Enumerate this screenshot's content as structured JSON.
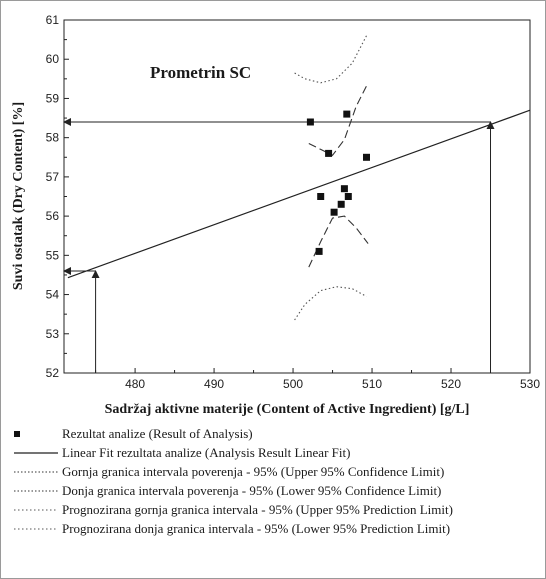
{
  "chart_data": {
    "type": "scatter",
    "title": "Prometrin SC",
    "xlabel": "Sadržaj aktivne materije (Content of Active Ingredient) [g/L]",
    "ylabel": "Suvi ostatak (Dry Content) [%]",
    "xlim": [
      471,
      530
    ],
    "ylim": [
      52,
      61
    ],
    "x_ticks": [
      "480",
      "490",
      "500",
      "510",
      "520",
      "530"
    ],
    "y_ticks": [
      "52",
      "53",
      "54",
      "55",
      "56",
      "57",
      "58",
      "59",
      "60",
      "61"
    ],
    "grid": false,
    "legend_position": "below plot",
    "series": [
      {
        "name": "Rezultat analize (Result of Analysis)",
        "kind": "points",
        "points": [
          {
            "x": 502.2,
            "y": 58.4
          },
          {
            "x": 503.3,
            "y": 55.1
          },
          {
            "x": 503.5,
            "y": 56.5
          },
          {
            "x": 504.5,
            "y": 57.6
          },
          {
            "x": 505.2,
            "y": 56.1
          },
          {
            "x": 506.1,
            "y": 56.3
          },
          {
            "x": 506.5,
            "y": 56.7
          },
          {
            "x": 506.8,
            "y": 58.6
          },
          {
            "x": 507.0,
            "y": 56.5
          },
          {
            "x": 509.3,
            "y": 57.5
          }
        ]
      },
      {
        "name": "Linear Fit rezultata analize (Analysis Result Linear Fit)",
        "kind": "line",
        "style": "solid",
        "points": [
          {
            "x": 471.5,
            "y": 54.43
          },
          {
            "x": 530,
            "y": 58.7
          }
        ]
      },
      {
        "name": "Gornja granica intervala poverenja - 95% (Upper 95% Confidence Limit)",
        "kind": "line",
        "style": "dashed",
        "points": [
          {
            "x": 502.0,
            "y": 57.85
          },
          {
            "x": 503.5,
            "y": 57.7
          },
          {
            "x": 505.0,
            "y": 57.55
          },
          {
            "x": 506.5,
            "y": 57.95
          },
          {
            "x": 508.0,
            "y": 58.8
          },
          {
            "x": 509.5,
            "y": 59.4
          }
        ]
      },
      {
        "name": "Donja granica intervala poverenja - 95% (Lower 95% Confidence Limit)",
        "kind": "line",
        "style": "dashed",
        "points": [
          {
            "x": 502.0,
            "y": 54.7
          },
          {
            "x": 503.5,
            "y": 55.35
          },
          {
            "x": 505.0,
            "y": 55.95
          },
          {
            "x": 506.5,
            "y": 56.0
          },
          {
            "x": 508.0,
            "y": 55.7
          },
          {
            "x": 509.5,
            "y": 55.3
          }
        ]
      },
      {
        "name": "Prognozirana gornja granica intervala - 95% (Upper 95% Prediction Limit)",
        "kind": "line",
        "style": "dotted",
        "points": [
          {
            "x": 500.2,
            "y": 59.65
          },
          {
            "x": 501.5,
            "y": 59.5
          },
          {
            "x": 503.5,
            "y": 59.4
          },
          {
            "x": 505.5,
            "y": 59.5
          },
          {
            "x": 507.5,
            "y": 59.9
          },
          {
            "x": 509.3,
            "y": 60.6
          }
        ]
      },
      {
        "name": "Prognozirana donja granica intervala - 95% (Lower 95% Prediction Limit)",
        "kind": "line",
        "style": "dotted",
        "points": [
          {
            "x": 500.2,
            "y": 53.35
          },
          {
            "x": 501.5,
            "y": 53.75
          },
          {
            "x": 503.5,
            "y": 54.1
          },
          {
            "x": 505.5,
            "y": 54.2
          },
          {
            "x": 507.5,
            "y": 54.15
          },
          {
            "x": 509.3,
            "y": 53.95
          }
        ]
      }
    ],
    "reference_lines": [
      {
        "kind": "arrow",
        "from": {
          "x": 525,
          "y": 52
        },
        "to": {
          "x": 525,
          "y": 58.4
        }
      },
      {
        "kind": "arrow",
        "from": {
          "x": 525,
          "y": 58.4
        },
        "to": {
          "x": 471,
          "y": 58.4
        }
      },
      {
        "kind": "arrow",
        "from": {
          "x": 475,
          "y": 52
        },
        "to": {
          "x": 475,
          "y": 54.6
        }
      },
      {
        "kind": "arrow",
        "from": {
          "x": 475,
          "y": 54.6
        },
        "to": {
          "x": 471,
          "y": 54.6
        }
      }
    ]
  }
}
